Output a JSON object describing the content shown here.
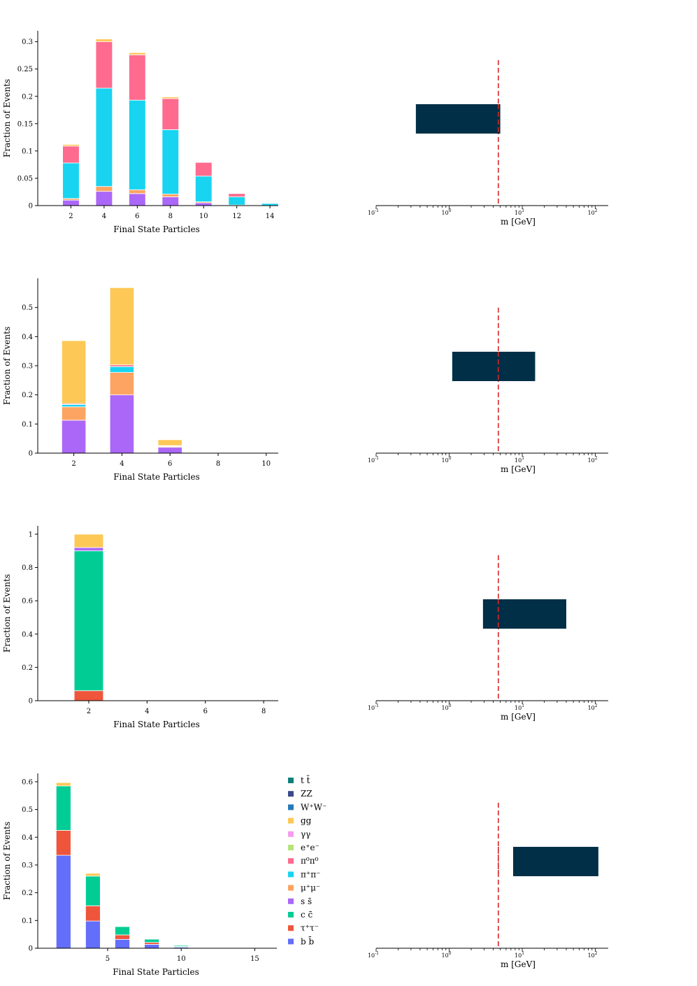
{
  "figure": {
    "row_xlabel": "Final State Particles",
    "row_ylabel": "Fraction of Events",
    "mass_xlabel": "m [GeV]",
    "reference_mass": 4.7
  },
  "legend": [
    {
      "label": "t t̄",
      "color": "#0f7f7a"
    },
    {
      "label": "ZZ",
      "color": "#3b4a8c"
    },
    {
      "label": "W⁺W⁻",
      "color": "#2679b8"
    },
    {
      "label": "gg",
      "color": "#fdc856"
    },
    {
      "label": "γγ",
      "color": "#f59cf0"
    },
    {
      "label": "e⁺e⁻",
      "color": "#b5e37a"
    },
    {
      "label": "π⁰π⁰",
      "color": "#fe6b8f"
    },
    {
      "label": "π⁺π⁻",
      "color": "#18d4f0"
    },
    {
      "label": "μ⁺μ⁻",
      "color": "#fda462"
    },
    {
      "label": "s s̄",
      "color": "#ab67f7"
    },
    {
      "label": "c c̄",
      "color": "#00cc94"
    },
    {
      "label": "τ⁺τ⁻",
      "color": "#ef553b"
    },
    {
      "label": "b b̄",
      "color": "#636efa"
    }
  ],
  "chart_data": [
    {
      "type": "bar",
      "stacked": true,
      "xlabel": "Final State Particles",
      "ylabel": "Fraction of Events",
      "xlim": [
        0,
        14.5
      ],
      "xticks": [
        2,
        4,
        6,
        8,
        10,
        12,
        14
      ],
      "ylim": [
        0,
        0.32
      ],
      "yticks": [
        0,
        0.05,
        0.1,
        0.15,
        0.2,
        0.25,
        0.3
      ],
      "ytick_labels": [
        "0",
        "0.05",
        "0.1",
        "0.15",
        "0.2",
        "0.25",
        "0.3"
      ],
      "bar_width": 1.0,
      "categories": [
        2,
        4,
        6,
        8,
        10,
        12,
        14
      ],
      "series": [
        {
          "name": "s s̄",
          "color": "#ab67f7",
          "values": [
            0.01,
            0.026,
            0.022,
            0.016,
            0.005,
            0.001,
            0
          ]
        },
        {
          "name": "μ⁺μ⁻",
          "color": "#fda462",
          "values": [
            0.003,
            0.009,
            0.007,
            0.005,
            0.002,
            0,
            0
          ]
        },
        {
          "name": "π⁺π⁻",
          "color": "#18d4f0",
          "values": [
            0.065,
            0.18,
            0.164,
            0.118,
            0.047,
            0.015,
            0.004
          ]
        },
        {
          "name": "π⁰π⁰",
          "color": "#fe6b8f",
          "values": [
            0.031,
            0.085,
            0.083,
            0.057,
            0.025,
            0.006,
            0.001
          ]
        },
        {
          "name": "gg",
          "color": "#fdc856",
          "values": [
            0.003,
            0.005,
            0.004,
            0.003,
            0,
            0,
            0
          ]
        }
      ]
    },
    {
      "type": "bar",
      "orientation": "horizontal",
      "xlabel": "m [GeV]",
      "xscale": "log",
      "xlim": [
        0.1,
        150
      ],
      "interval": [
        0.35,
        5.0
      ],
      "reference_line": 4.7
    },
    {
      "type": "bar",
      "stacked": true,
      "xlabel": "Final State Particles",
      "ylabel": "Fraction of Events",
      "xlim": [
        0.5,
        10.5
      ],
      "xticks": [
        2,
        4,
        6,
        8,
        10
      ],
      "ylim": [
        0,
        0.6
      ],
      "yticks": [
        0,
        0.1,
        0.2,
        0.3,
        0.4,
        0.5
      ],
      "ytick_labels": [
        "0",
        "0.1",
        "0.2",
        "0.3",
        "0.4",
        "0.5"
      ],
      "bar_width": 1.0,
      "categories": [
        2,
        4,
        6
      ],
      "series": [
        {
          "name": "s s̄",
          "color": "#ab67f7",
          "values": [
            0.113,
            0.2,
            0.02
          ]
        },
        {
          "name": "μ⁺μ⁻",
          "color": "#fda462",
          "values": [
            0.046,
            0.077,
            0.003
          ]
        },
        {
          "name": "π⁺π⁻",
          "color": "#18d4f0",
          "values": [
            0.008,
            0.02,
            0.002
          ]
        },
        {
          "name": "π⁰π⁰",
          "color": "#fe6b8f",
          "values": [
            0.003,
            0.006,
            0.001
          ]
        },
        {
          "name": "gg",
          "color": "#fdc856",
          "values": [
            0.216,
            0.265,
            0.02
          ]
        }
      ]
    },
    {
      "type": "bar",
      "orientation": "horizontal",
      "xlabel": "m [GeV]",
      "xscale": "log",
      "xlim": [
        0.1,
        150
      ],
      "interval": [
        1.1,
        15.0
      ],
      "reference_line": 4.7
    },
    {
      "type": "bar",
      "stacked": true,
      "xlabel": "Final State Particles",
      "ylabel": "Fraction of Events",
      "xlim": [
        0.25,
        8.5
      ],
      "xticks": [
        2,
        4,
        6,
        8
      ],
      "ylim": [
        0,
        1.05
      ],
      "yticks": [
        0,
        0.2,
        0.4,
        0.6,
        0.8,
        1
      ],
      "ytick_labels": [
        "0",
        "0.2",
        "0.4",
        "0.6",
        "0.8",
        "1"
      ],
      "bar_width": 1.0,
      "categories": [
        2
      ],
      "series": [
        {
          "name": "τ⁺τ⁻",
          "color": "#ef553b",
          "values": [
            0.06
          ]
        },
        {
          "name": "c c̄",
          "color": "#00cc94",
          "values": [
            0.84
          ]
        },
        {
          "name": "s s̄",
          "color": "#ab67f7",
          "values": [
            0.02
          ]
        },
        {
          "name": "gg",
          "color": "#fdc856",
          "values": [
            0.08
          ]
        }
      ]
    },
    {
      "type": "bar",
      "orientation": "horizontal",
      "xlabel": "m [GeV]",
      "xscale": "log",
      "xlim": [
        0.1,
        150
      ],
      "interval": [
        2.9,
        40.0
      ],
      "reference_line": 4.7
    },
    {
      "type": "bar",
      "stacked": true,
      "xlabel": "Final State Particles",
      "ylabel": "Fraction of Events",
      "xlim": [
        0.25,
        16.5
      ],
      "xticks": [
        5,
        10,
        15
      ],
      "ylim": [
        0,
        0.63
      ],
      "yticks": [
        0,
        0.1,
        0.2,
        0.3,
        0.4,
        0.5,
        0.6
      ],
      "ytick_labels": [
        "0",
        "0.1",
        "0.2",
        "0.3",
        "0.4",
        "0.5",
        "0.6"
      ],
      "bar_width": 1.0,
      "categories": [
        2,
        4,
        6,
        8,
        10,
        12
      ],
      "series": [
        {
          "name": "b b̄",
          "color": "#636efa",
          "values": [
            0.335,
            0.098,
            0.032,
            0.014,
            0.004,
            0
          ]
        },
        {
          "name": "τ⁺τ⁻",
          "color": "#ef553b",
          "values": [
            0.09,
            0.055,
            0.016,
            0.007,
            0.002,
            0
          ]
        },
        {
          "name": "c c̄",
          "color": "#00cc94",
          "values": [
            0.16,
            0.107,
            0.03,
            0.012,
            0.004,
            0.001
          ]
        },
        {
          "name": "gg",
          "color": "#fdc856",
          "values": [
            0.012,
            0.01,
            0.002,
            0.001,
            0,
            0
          ]
        }
      ]
    },
    {
      "type": "bar",
      "orientation": "horizontal",
      "xlabel": "m [GeV]",
      "xscale": "log",
      "xlim": [
        0.1,
        150
      ],
      "interval": [
        7.5,
        110.0
      ],
      "reference_line": 4.7
    }
  ]
}
